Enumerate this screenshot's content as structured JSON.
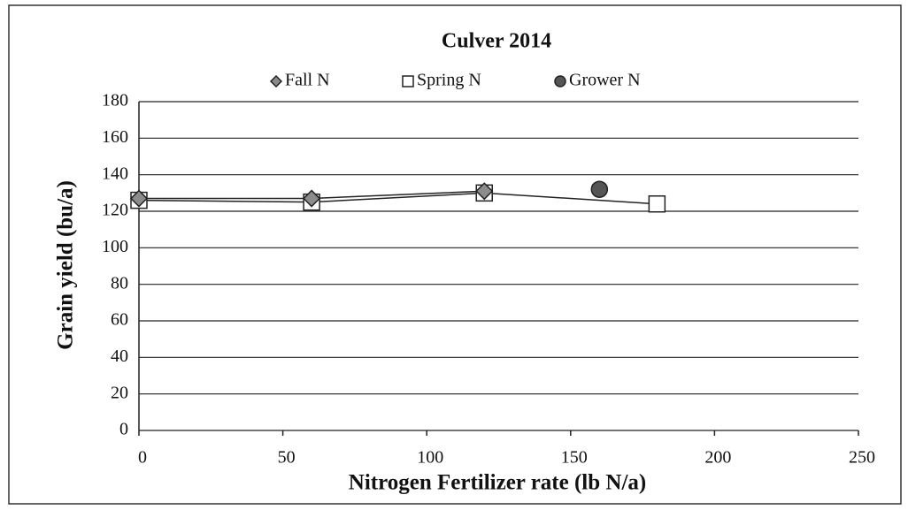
{
  "chart_data": {
    "type": "line",
    "title": "Culver 2014",
    "x_label": "Nitrogen Fertilizer rate (lb N/a)",
    "y_label": "Grain yield (bu/a)",
    "series": [
      {
        "name": "Fall N",
        "color": "#8c8c8c",
        "marker": "diamond",
        "x": [
          0,
          60,
          120
        ],
        "values": [
          127,
          127,
          131
        ]
      },
      {
        "name": "Spring N",
        "color": "#ffffff",
        "marker": "square",
        "x": [
          0,
          60,
          120,
          180
        ],
        "values": [
          126,
          125,
          130,
          124
        ]
      },
      {
        "name": "Grower N",
        "color": "#555555",
        "marker": "circle",
        "x": [
          160
        ],
        "values": [
          132
        ]
      }
    ],
    "xlim": [
      0,
      250
    ],
    "xticks": [
      0,
      50,
      100,
      150,
      200,
      250
    ],
    "ylim": [
      0,
      180
    ],
    "yticks": [
      0,
      20,
      40,
      60,
      80,
      100,
      120,
      140,
      160,
      180
    ],
    "grid": true,
    "legend": "top"
  }
}
